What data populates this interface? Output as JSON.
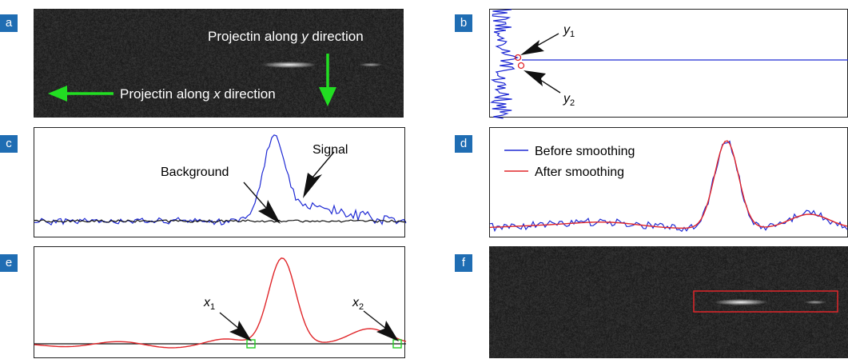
{
  "panels": {
    "a": {
      "badge": "a",
      "proj_y": {
        "pre": "Projectin along ",
        "var": "y",
        "post": " direction"
      },
      "proj_x": {
        "pre": "Projectin along ",
        "var": "x",
        "post": " direction"
      }
    },
    "b": {
      "badge": "b",
      "y1": {
        "var": "y",
        "sub": "1"
      },
      "y2": {
        "var": "y",
        "sub": "2"
      }
    },
    "c": {
      "badge": "c",
      "signal_label": "Signal",
      "background_label": "Background"
    },
    "d": {
      "badge": "d",
      "legend": {
        "before": "Before smoothing",
        "after": "After smoothing"
      }
    },
    "e": {
      "badge": "e",
      "x1": {
        "var": "x",
        "sub": "1"
      },
      "x2": {
        "var": "x",
        "sub": "2"
      }
    },
    "f": {
      "badge": "f"
    }
  },
  "colors": {
    "badge": "#1f6db3",
    "raw": "#1f2ad4",
    "smooth": "#e0262a",
    "arrow_green": "#22dd22",
    "marker_green": "#22cc22",
    "roi_red": "#e0262a",
    "background_line": "#111111"
  }
}
